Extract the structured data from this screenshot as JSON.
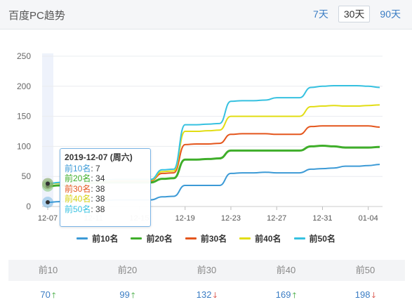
{
  "header": {
    "title": "百度PC趋势",
    "tabs": [
      {
        "label": "7天",
        "active": false
      },
      {
        "label": "30天",
        "active": true
      },
      {
        "label": "90天",
        "active": false
      }
    ]
  },
  "chart_data": {
    "type": "line",
    "x": [
      "12-07",
      "12-08",
      "12-09",
      "12-10",
      "12-11",
      "12-12",
      "12-13",
      "12-14",
      "12-15",
      "12-16",
      "12-17",
      "12-18",
      "12-19",
      "12-20",
      "12-21",
      "12-22",
      "12-23",
      "12-24",
      "12-25",
      "12-26",
      "12-27",
      "12-28",
      "12-29",
      "12-30",
      "12-31",
      "01-01",
      "01-02",
      "01-03",
      "01-04",
      "01-05"
    ],
    "x_tick_labels": [
      "12-07",
      "12-11",
      "12-15",
      "12-19",
      "12-23",
      "12-27",
      "12-31",
      "01-04"
    ],
    "ylim": [
      0,
      250
    ],
    "y_ticks": [
      0,
      50,
      100,
      150,
      200,
      250
    ],
    "grid": true,
    "legend_position": "bottom",
    "series": [
      {
        "name": "前10名",
        "color": "#3c9ad6",
        "values": [
          7,
          8,
          9,
          10,
          10,
          10,
          11,
          11,
          11,
          11,
          16,
          17,
          35,
          35,
          35,
          35,
          55,
          56,
          56,
          57,
          56,
          56,
          56,
          62,
          63,
          64,
          67,
          67,
          68,
          70
        ]
      },
      {
        "name": "前20名",
        "color": "#3fae2a",
        "values": [
          34,
          35,
          36,
          38,
          39,
          40,
          40,
          40,
          40,
          40,
          46,
          47,
          78,
          78,
          79,
          80,
          93,
          93,
          93,
          93,
          93,
          93,
          93,
          100,
          101,
          100,
          98,
          98,
          98,
          99
        ]
      },
      {
        "name": "前30名",
        "color": "#e4561d",
        "values": [
          38,
          39,
          40,
          41,
          42,
          43,
          43,
          43,
          43,
          43,
          55,
          56,
          103,
          104,
          104,
          105,
          120,
          121,
          121,
          121,
          120,
          120,
          120,
          133,
          134,
          134,
          134,
          134,
          134,
          132
        ]
      },
      {
        "name": "前40名",
        "color": "#e2dd14",
        "values": [
          38,
          39,
          40,
          41,
          42,
          43,
          44,
          44,
          44,
          44,
          58,
          59,
          125,
          125,
          126,
          127,
          150,
          150,
          150,
          150,
          150,
          150,
          150,
          166,
          167,
          168,
          167,
          167,
          168,
          169
        ]
      },
      {
        "name": "前50名",
        "color": "#36c1e0",
        "values": [
          38,
          40,
          41,
          42,
          43,
          44,
          45,
          45,
          45,
          45,
          61,
          62,
          136,
          136,
          137,
          138,
          175,
          176,
          176,
          177,
          181,
          181,
          181,
          198,
          200,
          201,
          201,
          201,
          200,
          198
        ]
      }
    ]
  },
  "tooltip": {
    "date": "2019-12-07 (周六)",
    "rows": [
      {
        "label": "前10名",
        "value": "7",
        "color": "#3c9ad6"
      },
      {
        "label": "前20名",
        "value": "34",
        "color": "#3fae2a"
      },
      {
        "label": "前30名",
        "value": "38",
        "color": "#e4561d"
      },
      {
        "label": "前40名",
        "value": "38",
        "color": "#e2dd14"
      },
      {
        "label": "前50名",
        "value": "38",
        "color": "#36c1e0"
      }
    ]
  },
  "summary": {
    "headers": [
      "前10",
      "前20",
      "前30",
      "前40",
      "前50"
    ],
    "values": [
      {
        "value": "70",
        "trend": "up"
      },
      {
        "value": "99",
        "trend": "up"
      },
      {
        "value": "132",
        "trend": "down"
      },
      {
        "value": "169",
        "trend": "up"
      },
      {
        "value": "198",
        "trend": "down"
      }
    ]
  }
}
